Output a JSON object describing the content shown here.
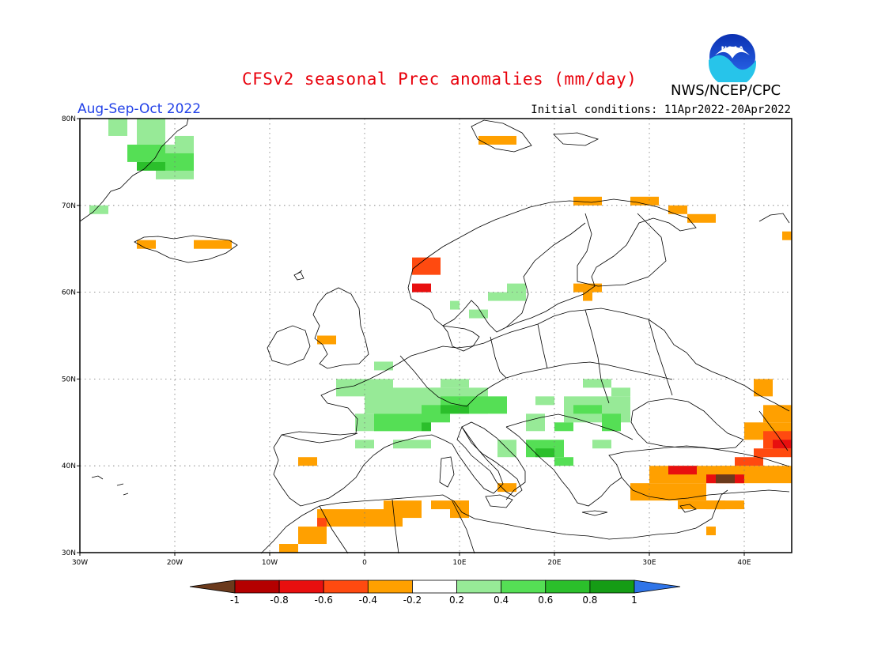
{
  "title": "CFSv2 seasonal Prec anomalies (mm/day)",
  "organization": "NWS/NCEP/CPC",
  "logo_text": "NOAA",
  "period": "Aug-Sep-Oct 2022",
  "initial_conditions": "Initial conditions: 11Apr2022-20Apr2022",
  "axes": {
    "lon_range": [
      -30,
      45
    ],
    "lat_range": [
      30,
      80
    ],
    "lon_ticks": [
      {
        "value": -30,
        "label": "30W"
      },
      {
        "value": -20,
        "label": "20W"
      },
      {
        "value": -10,
        "label": "10W"
      },
      {
        "value": 0,
        "label": "0"
      },
      {
        "value": 10,
        "label": "10E"
      },
      {
        "value": 20,
        "label": "20E"
      },
      {
        "value": 30,
        "label": "30E"
      },
      {
        "value": 40,
        "label": "40E"
      }
    ],
    "lat_ticks": [
      {
        "value": 30,
        "label": "30N"
      },
      {
        "value": 40,
        "label": "40N"
      },
      {
        "value": 50,
        "label": "50N"
      },
      {
        "value": 60,
        "label": "60N"
      },
      {
        "value": 70,
        "label": "70N"
      },
      {
        "value": 80,
        "label": "80N"
      }
    ],
    "grid": "dotted"
  },
  "colorbar": {
    "labels": [
      "-1",
      "-0.8",
      "-0.6",
      "-0.4",
      "-0.2",
      "0.2",
      "0.4",
      "0.6",
      "0.8",
      "1"
    ],
    "colors": [
      "#6b3a1c",
      "#b40000",
      "#e80f0f",
      "#ff4a10",
      "#ffa000",
      "#ffffff",
      "#97ea97",
      "#55df55",
      "#2bbf2b",
      "#159c15",
      "#2f74e8"
    ]
  },
  "anomaly_regions": [
    {
      "name": "greenland-east",
      "color": "#97ea97",
      "cells": [
        [
          -27,
          78,
          2,
          2
        ],
        [
          -24,
          77,
          3,
          3
        ],
        [
          -22,
          73,
          4,
          4
        ],
        [
          -29,
          69,
          2,
          1
        ],
        [
          -20,
          76,
          2,
          2
        ]
      ]
    },
    {
      "name": "greenland-core",
      "color": "#55df55",
      "cells": [
        [
          -25,
          75,
          4,
          2
        ],
        [
          -21,
          74,
          3,
          2
        ]
      ]
    },
    {
      "name": "greenland-dark",
      "color": "#2bbf2b",
      "cells": [
        [
          -24,
          74,
          3,
          1
        ]
      ]
    },
    {
      "name": "svalbard",
      "color": "#ffa000",
      "cells": [
        [
          12,
          77,
          4,
          1
        ]
      ]
    },
    {
      "name": "iceland",
      "color": "#ffa000",
      "cells": [
        [
          -24,
          65,
          2,
          1
        ],
        [
          -18,
          65,
          4,
          1
        ]
      ]
    },
    {
      "name": "barents-coast",
      "color": "#ffa000",
      "cells": [
        [
          22,
          70,
          3,
          1
        ],
        [
          28,
          70,
          3,
          1
        ],
        [
          32,
          69,
          2,
          1
        ],
        [
          34,
          68,
          3,
          1
        ],
        [
          44,
          66,
          1,
          1
        ]
      ]
    },
    {
      "name": "norway-coast",
      "color": "#ff4a10",
      "cells": [
        [
          5,
          62,
          3,
          2
        ]
      ]
    },
    {
      "name": "norway-coast-red",
      "color": "#e80f0f",
      "cells": [
        [
          5,
          60,
          2,
          1
        ]
      ]
    },
    {
      "name": "finland",
      "color": "#ffa000",
      "cells": [
        [
          22,
          60,
          3,
          1
        ],
        [
          23,
          59,
          1,
          1
        ]
      ]
    },
    {
      "name": "scandinavia-green",
      "color": "#97ea97",
      "cells": [
        [
          15,
          59,
          2,
          2
        ],
        [
          13,
          59,
          2,
          1
        ],
        [
          9,
          58,
          1,
          1
        ],
        [
          11,
          57,
          2,
          1
        ]
      ]
    },
    {
      "name": "uk",
      "color": "#ffa000",
      "cells": [
        [
          -5,
          54,
          2,
          1
        ]
      ]
    },
    {
      "name": "west-europe",
      "color": "#97ea97",
      "cells": [
        [
          1,
          51,
          2,
          1
        ],
        [
          -3,
          48,
          6,
          2
        ],
        [
          0,
          46,
          8,
          3
        ],
        [
          -1,
          44,
          8,
          2
        ],
        [
          7,
          47,
          6,
          2
        ],
        [
          -1,
          42,
          2,
          1
        ],
        [
          3,
          42,
          4,
          1
        ],
        [
          8,
          49,
          3,
          1
        ],
        [
          11,
          46,
          2,
          1
        ]
      ]
    },
    {
      "name": "alps",
      "color": "#55df55",
      "cells": [
        [
          1,
          44,
          5,
          2
        ],
        [
          6,
          45,
          3,
          2
        ],
        [
          8,
          46,
          7,
          2
        ]
      ]
    },
    {
      "name": "alps-dark",
      "color": "#2bbf2b",
      "cells": [
        [
          8,
          46,
          3,
          1
        ],
        [
          6,
          44,
          1,
          1
        ]
      ]
    },
    {
      "name": "central-europe",
      "color": "#97ea97",
      "cells": [
        [
          18,
          47,
          2,
          1
        ],
        [
          21,
          45,
          7,
          3
        ],
        [
          23,
          49,
          3,
          1
        ],
        [
          26,
          48,
          2,
          1
        ],
        [
          24,
          42,
          2,
          1
        ],
        [
          14,
          41,
          2,
          2
        ],
        [
          17,
          44,
          2,
          2
        ]
      ]
    },
    {
      "name": "central-europe-mid",
      "color": "#55df55",
      "cells": [
        [
          22,
          46,
          3,
          1
        ],
        [
          25,
          44,
          2,
          2
        ],
        [
          20,
          44,
          2,
          1
        ]
      ]
    },
    {
      "name": "balkans",
      "color": "#55df55",
      "cells": [
        [
          17,
          41,
          4,
          2
        ],
        [
          20,
          40,
          2,
          1
        ]
      ]
    },
    {
      "name": "balkans-dark",
      "color": "#2bbf2b",
      "cells": [
        [
          18,
          41,
          2,
          1
        ]
      ]
    },
    {
      "name": "iberia",
      "color": "#ffa000",
      "cells": [
        [
          -7,
          40,
          2,
          1
        ]
      ]
    },
    {
      "name": "north-africa",
      "color": "#ffa000",
      "cells": [
        [
          -9,
          30,
          2,
          1
        ],
        [
          -7,
          31,
          3,
          2
        ],
        [
          -5,
          33,
          5,
          2
        ],
        [
          0,
          33,
          4,
          2
        ],
        [
          2,
          34,
          4,
          2
        ],
        [
          7,
          35,
          4,
          1
        ],
        [
          9,
          34,
          2,
          2
        ],
        [
          14,
          37,
          2,
          1
        ]
      ]
    },
    {
      "name": "north-africa-red",
      "color": "#ff4a10",
      "cells": [
        [
          -5,
          33,
          1,
          1
        ]
      ]
    },
    {
      "name": "caucasus",
      "color": "#ffa000",
      "cells": [
        [
          41,
          48,
          2,
          2
        ],
        [
          42,
          45,
          3,
          2
        ],
        [
          40,
          43,
          5,
          2
        ],
        [
          39,
          38,
          6,
          2
        ]
      ]
    },
    {
      "name": "caucasus-red",
      "color": "#ff4a10",
      "cells": [
        [
          42,
          42,
          3,
          2
        ],
        [
          41,
          41,
          4,
          1
        ],
        [
          39,
          40,
          3,
          1
        ]
      ]
    },
    {
      "name": "caucasus-dark",
      "color": "#e80f0f",
      "cells": [
        [
          43,
          42,
          2,
          1
        ]
      ]
    },
    {
      "name": "turkey",
      "color": "#ffa000",
      "cells": [
        [
          30,
          38,
          10,
          2
        ],
        [
          28,
          36,
          8,
          2
        ],
        [
          33,
          35,
          7,
          1
        ],
        [
          36,
          35,
          2,
          1
        ],
        [
          36,
          32,
          1,
          1
        ],
        [
          37,
          39,
          3,
          1
        ]
      ]
    },
    {
      "name": "turkey-red",
      "color": "#e80f0f",
      "cells": [
        [
          32,
          39,
          3,
          1
        ],
        [
          36,
          38,
          4,
          1
        ]
      ]
    },
    {
      "name": "turkey-brown",
      "color": "#6b3a1c",
      "cells": [
        [
          37,
          38,
          2,
          1
        ]
      ]
    }
  ]
}
